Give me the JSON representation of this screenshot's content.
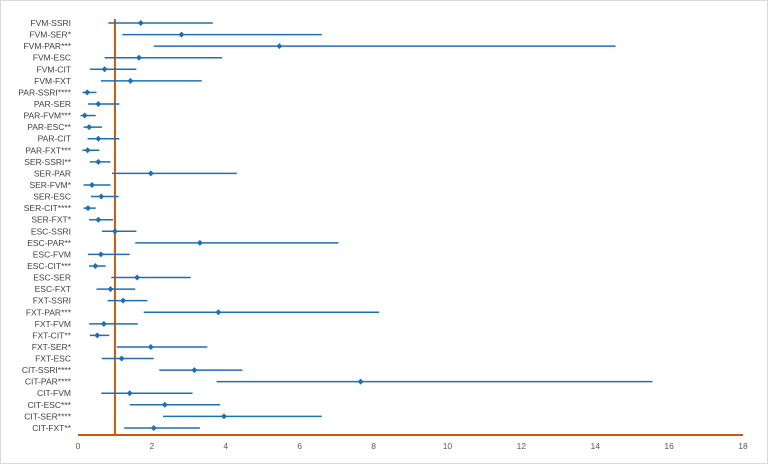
{
  "chart_data": {
    "type": "forest",
    "title": "",
    "xlabel": "",
    "ylabel": "",
    "xlim": [
      0,
      18
    ],
    "x_ticks": [
      0,
      2,
      4,
      6,
      8,
      10,
      12,
      14,
      16,
      18
    ],
    "reference_line": 1,
    "grid": false,
    "colors": {
      "series": "#1f6fb2",
      "reference": "#c55a11",
      "axis_text": "#595959",
      "label_text": "#404040"
    },
    "rows": [
      {
        "label": "FVM-SSRI",
        "estimate": 1.7,
        "lower": 0.82,
        "upper": 3.65
      },
      {
        "label": "FVM-SER*",
        "estimate": 2.8,
        "lower": 1.2,
        "upper": 6.6
      },
      {
        "label": "FVM-PAR***",
        "estimate": 5.45,
        "lower": 2.05,
        "upper": 14.55
      },
      {
        "label": "FVM-ESC",
        "estimate": 1.65,
        "lower": 0.72,
        "upper": 3.9
      },
      {
        "label": "FVM-CIT",
        "estimate": 0.72,
        "lower": 0.32,
        "upper": 1.58
      },
      {
        "label": "FVM-FXT",
        "estimate": 1.42,
        "lower": 0.62,
        "upper": 3.35
      },
      {
        "label": "PAR-SSRI****",
        "estimate": 0.25,
        "lower": 0.12,
        "upper": 0.5
      },
      {
        "label": "PAR-SER",
        "estimate": 0.55,
        "lower": 0.27,
        "upper": 1.12
      },
      {
        "label": "PAR-FVM***",
        "estimate": 0.18,
        "lower": 0.07,
        "upper": 0.48
      },
      {
        "label": "PAR-ESC**",
        "estimate": 0.3,
        "lower": 0.15,
        "upper": 0.65
      },
      {
        "label": "PAR-CIT",
        "estimate": 0.55,
        "lower": 0.26,
        "upper": 1.12
      },
      {
        "label": "PAR-FXT***",
        "estimate": 0.26,
        "lower": 0.12,
        "upper": 0.58
      },
      {
        "label": "SER-SSRI**",
        "estimate": 0.55,
        "lower": 0.32,
        "upper": 0.88
      },
      {
        "label": "SER-PAR",
        "estimate": 1.97,
        "lower": 0.92,
        "upper": 4.3
      },
      {
        "label": "SER-FVM*",
        "estimate": 0.38,
        "lower": 0.15,
        "upper": 0.88
      },
      {
        "label": "SER-ESC",
        "estimate": 0.63,
        "lower": 0.35,
        "upper": 1.1
      },
      {
        "label": "SER-CIT****",
        "estimate": 0.27,
        "lower": 0.15,
        "upper": 0.48
      },
      {
        "label": "SER-FXT*",
        "estimate": 0.55,
        "lower": 0.3,
        "upper": 0.95
      },
      {
        "label": "ESC-SSRI",
        "estimate": 1.0,
        "lower": 0.65,
        "upper": 1.58
      },
      {
        "label": "ESC-PAR**",
        "estimate": 3.3,
        "lower": 1.55,
        "upper": 7.05
      },
      {
        "label": "ESC-FVM",
        "estimate": 0.62,
        "lower": 0.27,
        "upper": 1.4
      },
      {
        "label": "ESC-CIT***",
        "estimate": 0.47,
        "lower": 0.3,
        "upper": 0.75
      },
      {
        "label": "ESC-SER",
        "estimate": 1.6,
        "lower": 0.9,
        "upper": 3.05
      },
      {
        "label": "ESC-FXT",
        "estimate": 0.88,
        "lower": 0.5,
        "upper": 1.55
      },
      {
        "label": "FXT-SSRI",
        "estimate": 1.22,
        "lower": 0.8,
        "upper": 1.88
      },
      {
        "label": "FXT-PAR***",
        "estimate": 3.8,
        "lower": 1.78,
        "upper": 8.15
      },
      {
        "label": "FXT-FVM",
        "estimate": 0.7,
        "lower": 0.3,
        "upper": 1.62
      },
      {
        "label": "FXT-CIT**",
        "estimate": 0.52,
        "lower": 0.32,
        "upper": 0.85
      },
      {
        "label": "FXT-SER*",
        "estimate": 1.97,
        "lower": 1.05,
        "upper": 3.5
      },
      {
        "label": "FXT-ESC",
        "estimate": 1.18,
        "lower": 0.65,
        "upper": 2.05
      },
      {
        "label": "CIT-SSRI****",
        "estimate": 3.15,
        "lower": 2.2,
        "upper": 4.45
      },
      {
        "label": "CIT-PAR****",
        "estimate": 7.65,
        "lower": 3.75,
        "upper": 15.55
      },
      {
        "label": "CIT-FVM",
        "estimate": 1.4,
        "lower": 0.63,
        "upper": 3.1
      },
      {
        "label": "CIT-ESC***",
        "estimate": 2.35,
        "lower": 1.4,
        "upper": 3.85
      },
      {
        "label": "CIT-SER****",
        "estimate": 3.95,
        "lower": 2.3,
        "upper": 6.6
      },
      {
        "label": "CIT-FXT**",
        "estimate": 2.05,
        "lower": 1.25,
        "upper": 3.3
      }
    ]
  }
}
